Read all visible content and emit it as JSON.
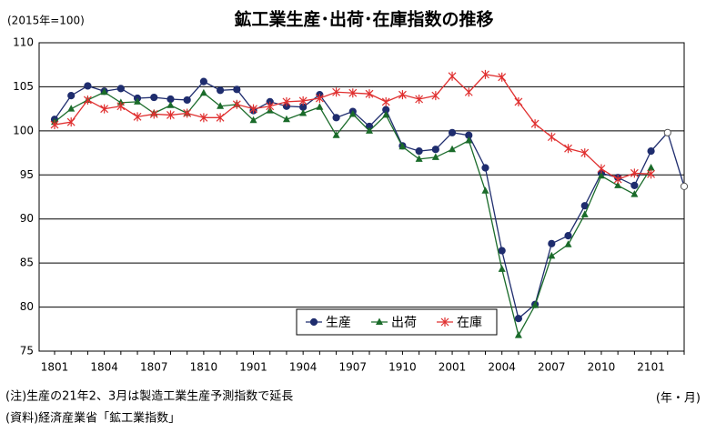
{
  "chart_data": {
    "type": "line",
    "title": "鉱工業生産･出荷･在庫指数の推移",
    "unit_label": "(2015年=100)",
    "x_axis_label": "(年・月)",
    "notes": [
      "(注)生産の21年2、3月は製造工業生産予測指数で延長",
      "(資料)経済産業省「鉱工業指数」"
    ],
    "categories": [
      "1801",
      null,
      null,
      "1804",
      null,
      null,
      "1807",
      null,
      null,
      "1810",
      null,
      null,
      "1901",
      null,
      null,
      "1904",
      null,
      null,
      "1907",
      null,
      null,
      "1910",
      null,
      null,
      "2001",
      null,
      null,
      "2004",
      null,
      null,
      "2007",
      null,
      null,
      "2010",
      null,
      null,
      "2101",
      null,
      null
    ],
    "ylim": [
      75,
      110
    ],
    "yticks": [
      75,
      80,
      85,
      90,
      95,
      100,
      105,
      110
    ],
    "grid": true,
    "legend": "bottom",
    "series": [
      {
        "name": "生産",
        "color": "#1f2d6e",
        "marker": "circle",
        "open_marker_from": 37,
        "values": [
          101.3,
          104.0,
          105.1,
          104.5,
          104.8,
          103.7,
          103.8,
          103.6,
          103.5,
          105.6,
          104.6,
          104.7,
          102.3,
          103.3,
          102.8,
          102.7,
          104.1,
          101.5,
          102.2,
          100.5,
          102.4,
          98.3,
          97.7,
          97.9,
          99.8,
          99.5,
          95.8,
          86.4,
          78.7,
          80.3,
          87.2,
          88.1,
          91.5,
          95.2,
          94.7,
          93.8,
          97.7,
          99.8,
          93.7
        ]
      },
      {
        "name": "出荷",
        "color": "#1a6b2a",
        "marker": "triangle",
        "values": [
          101.0,
          102.5,
          103.5,
          104.4,
          103.2,
          103.3,
          102.0,
          102.9,
          102.0,
          104.3,
          102.8,
          103.0,
          101.2,
          102.3,
          101.3,
          102.0,
          102.7,
          99.5,
          101.9,
          100.0,
          101.8,
          98.2,
          96.8,
          97.0,
          97.9,
          98.9,
          93.2,
          84.3,
          76.8,
          80.2,
          85.8,
          87.1,
          90.5,
          94.9,
          93.8,
          92.8,
          95.8,
          null,
          null
        ]
      },
      {
        "name": "在庫",
        "color": "#e03030",
        "marker": "star",
        "values": [
          100.7,
          101.0,
          103.5,
          102.5,
          102.8,
          101.6,
          101.9,
          101.8,
          102.0,
          101.5,
          101.5,
          103.0,
          102.5,
          102.8,
          103.3,
          103.4,
          103.7,
          104.4,
          104.3,
          104.2,
          103.3,
          104.1,
          103.6,
          104.0,
          106.2,
          104.4,
          106.4,
          106.1,
          103.3,
          100.8,
          99.3,
          98.0,
          97.5,
          95.7,
          94.5,
          95.2,
          95.1,
          null,
          null
        ]
      }
    ]
  }
}
